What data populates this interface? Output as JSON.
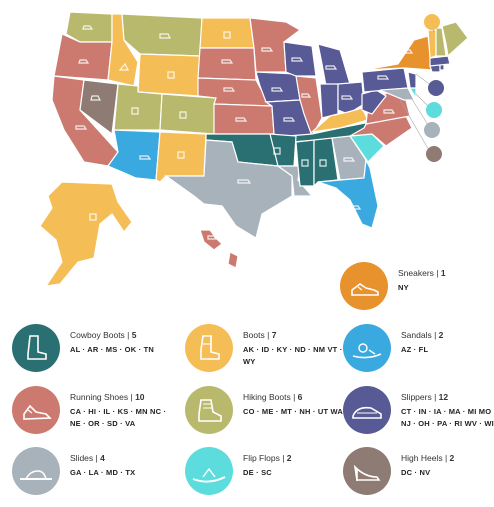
{
  "colors": {
    "sneakers": "#E8922E",
    "cowboy_boots": "#2A7072",
    "boots": "#F5BD56",
    "sandals": "#3AA9E0",
    "running_shoes": "#CC7A6F",
    "hiking_boots": "#B9B96E",
    "slippers": "#575A94",
    "slides": "#A8B2BA",
    "flip_flops": "#5CDCDC",
    "high_heels": "#8E7B73"
  },
  "legend": [
    {
      "key": "sneakers",
      "label": "Sneakers",
      "count": "1",
      "states": "NY",
      "icon": "sneaker-icon"
    },
    {
      "key": "cowboy_boots",
      "label": "Cowboy Boots",
      "count": "5",
      "states": "AL · AR · MS · OK · TN",
      "icon": "cowboy-boot-icon"
    },
    {
      "key": "boots",
      "label": "Boots",
      "count": "7",
      "states": "AK · ID · KY · ND · NM VT · WY",
      "icon": "boot-icon"
    },
    {
      "key": "sandals",
      "label": "Sandals",
      "count": "2",
      "states": "AZ · FL",
      "icon": "sandal-icon"
    },
    {
      "key": "running_shoes",
      "label": "Running Shoes",
      "count": "10",
      "states": "CA · HI · IL · KS · MN NC · NE · OR · SD · VA",
      "icon": "running-shoe-icon"
    },
    {
      "key": "hiking_boots",
      "label": "Hiking Boots",
      "count": "6",
      "states": "CO · ME · MT · NH · UT WA",
      "icon": "hiking-boot-icon"
    },
    {
      "key": "slippers",
      "label": "Slippers",
      "count": "12",
      "states": "CT · IN · IA · MA · MI MO · NJ · OH · PA · RI WV · WI",
      "icon": "slipper-icon"
    },
    {
      "key": "slides",
      "label": "Slides",
      "count": "4",
      "states": "GA · LA · MD · TX",
      "icon": "slide-icon"
    },
    {
      "key": "flip_flops",
      "label": "Flip Flops",
      "count": "2",
      "states": "DE · SC",
      "icon": "flip-flop-icon"
    },
    {
      "key": "high_heels",
      "label": "High Heels",
      "count": "2",
      "states": "DC · NV",
      "icon": "high-heel-icon"
    }
  ]
}
